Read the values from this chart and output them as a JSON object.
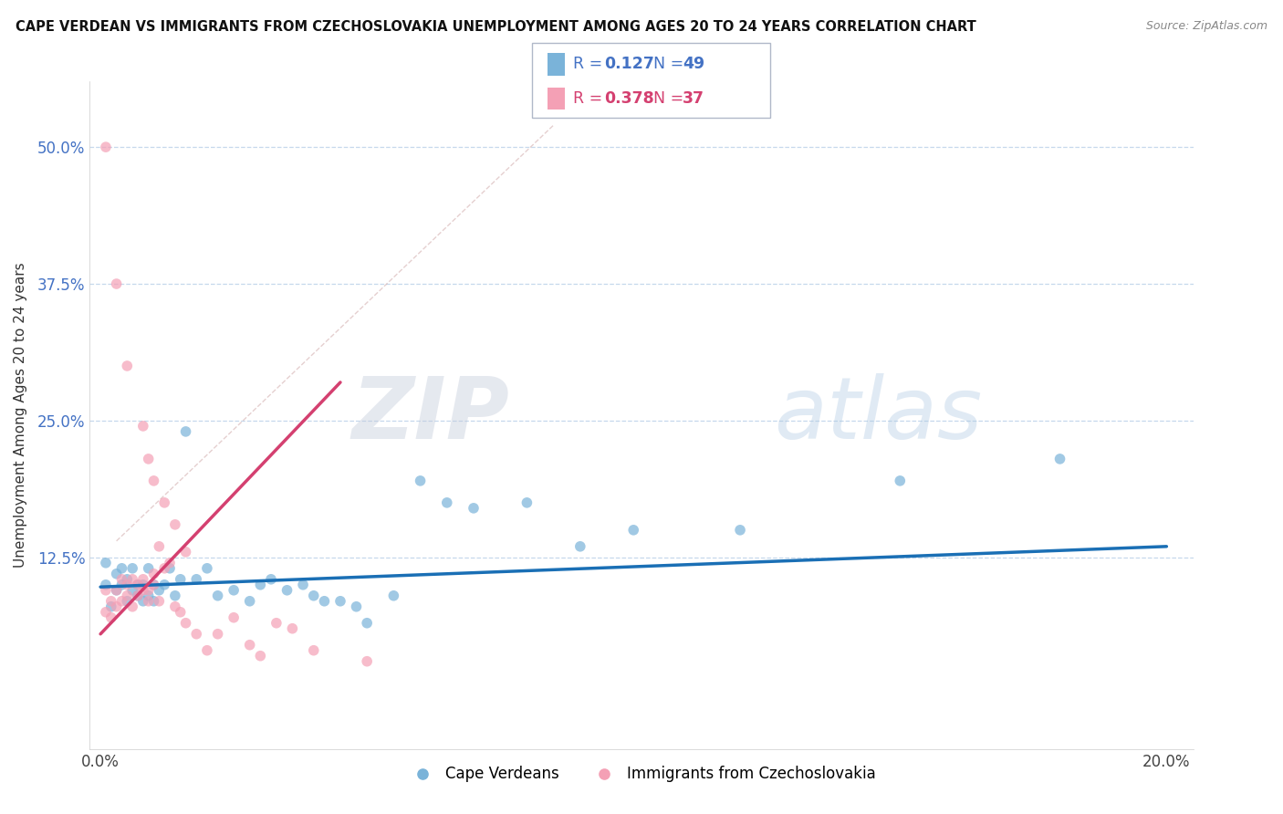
{
  "title": "CAPE VERDEAN VS IMMIGRANTS FROM CZECHOSLOVAKIA UNEMPLOYMENT AMONG AGES 20 TO 24 YEARS CORRELATION CHART",
  "source": "Source: ZipAtlas.com",
  "ylabel": "Unemployment Among Ages 20 to 24 years",
  "xlim": [
    -0.002,
    0.205
  ],
  "ylim": [
    -0.05,
    0.56
  ],
  "xticks": [
    0.0,
    0.2
  ],
  "xticklabels": [
    "0.0%",
    "20.0%"
  ],
  "yticks": [
    0.125,
    0.25,
    0.375,
    0.5
  ],
  "yticklabels": [
    "12.5%",
    "25.0%",
    "37.5%",
    "50.0%"
  ],
  "blue_color": "#7ab3d9",
  "pink_color": "#f4a0b5",
  "blue_trend": [
    0.0,
    0.098,
    0.2,
    0.135
  ],
  "pink_trend": [
    0.0,
    0.055,
    0.045,
    0.285
  ],
  "diag_line": [
    0.003,
    0.14,
    0.085,
    0.52
  ],
  "watermark_zip": "ZIP",
  "watermark_atlas": "atlas",
  "legend_labels": [
    "Cape Verdeans",
    "Immigrants from Czechoslovakia"
  ],
  "blue_scatter_x": [
    0.001,
    0.001,
    0.002,
    0.003,
    0.003,
    0.004,
    0.004,
    0.005,
    0.005,
    0.006,
    0.006,
    0.007,
    0.007,
    0.008,
    0.008,
    0.009,
    0.009,
    0.01,
    0.01,
    0.011,
    0.012,
    0.013,
    0.014,
    0.015,
    0.016,
    0.018,
    0.02,
    0.022,
    0.025,
    0.028,
    0.03,
    0.032,
    0.035,
    0.038,
    0.04,
    0.042,
    0.045,
    0.048,
    0.05,
    0.055,
    0.06,
    0.065,
    0.07,
    0.08,
    0.09,
    0.1,
    0.12,
    0.15,
    0.18
  ],
  "blue_scatter_y": [
    0.1,
    0.12,
    0.08,
    0.11,
    0.095,
    0.1,
    0.115,
    0.085,
    0.105,
    0.095,
    0.115,
    0.1,
    0.09,
    0.085,
    0.1,
    0.115,
    0.09,
    0.1,
    0.085,
    0.095,
    0.1,
    0.115,
    0.09,
    0.105,
    0.24,
    0.105,
    0.115,
    0.09,
    0.095,
    0.085,
    0.1,
    0.105,
    0.095,
    0.1,
    0.09,
    0.085,
    0.085,
    0.08,
    0.065,
    0.09,
    0.195,
    0.175,
    0.17,
    0.175,
    0.135,
    0.15,
    0.15,
    0.195,
    0.215
  ],
  "pink_scatter_x": [
    0.001,
    0.001,
    0.002,
    0.002,
    0.003,
    0.003,
    0.004,
    0.004,
    0.005,
    0.005,
    0.006,
    0.006,
    0.007,
    0.007,
    0.008,
    0.008,
    0.009,
    0.009,
    0.01,
    0.01,
    0.011,
    0.011,
    0.012,
    0.013,
    0.014,
    0.015,
    0.016,
    0.018,
    0.02,
    0.022,
    0.025,
    0.028,
    0.03,
    0.033,
    0.036,
    0.04,
    0.05
  ],
  "pink_scatter_y": [
    0.075,
    0.095,
    0.07,
    0.085,
    0.08,
    0.095,
    0.105,
    0.085,
    0.09,
    0.1,
    0.105,
    0.08,
    0.09,
    0.1,
    0.095,
    0.105,
    0.085,
    0.095,
    0.1,
    0.11,
    0.135,
    0.085,
    0.115,
    0.12,
    0.08,
    0.075,
    0.065,
    0.055,
    0.04,
    0.055,
    0.07,
    0.045,
    0.035,
    0.065,
    0.06,
    0.04,
    0.03
  ],
  "pink_high_x": [
    0.001,
    0.003,
    0.005,
    0.008,
    0.009,
    0.01,
    0.012,
    0.014,
    0.016
  ],
  "pink_high_y": [
    0.5,
    0.375,
    0.3,
    0.245,
    0.215,
    0.195,
    0.175,
    0.155,
    0.13
  ]
}
